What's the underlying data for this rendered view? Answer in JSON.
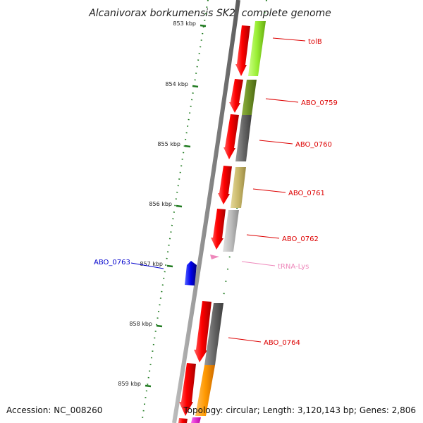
{
  "title": "Alcanivorax borkumensis SK2, complete genome",
  "footer": {
    "accession": "Accession: NC_008260",
    "topology": "Topology: circular; Length: 3,120,143 bp; Genes: 2,806"
  },
  "colors": {
    "backbone": "#8c8c8c",
    "tick": "#1f7a1f",
    "forward_strand": "#ff0000",
    "reverse_label": "#0000cc",
    "trna": "#ee88bb"
  },
  "ticks": [
    {
      "label": "853 kbp"
    },
    {
      "label": "854 kbp"
    },
    {
      "label": "855 kbp"
    },
    {
      "label": "856 kbp"
    },
    {
      "label": "857 kbp"
    },
    {
      "label": "858 kbp"
    },
    {
      "label": "859 kbp"
    }
  ],
  "genes": [
    {
      "name": "tolB",
      "color": "#99ee33"
    },
    {
      "name": "ABO_0759",
      "color": "#6b8e23"
    },
    {
      "name": "ABO_0760",
      "color": "#666666"
    },
    {
      "name": "ABO_0761",
      "color": "#c9b86a"
    },
    {
      "name": "ABO_0762",
      "color": "#bdbdbd"
    },
    {
      "name": "tRNA-Lys",
      "color": "#ee88bb"
    },
    {
      "name": "ABO_0763",
      "color": "#0000ee"
    },
    {
      "name": "ABO_0764",
      "color": "#6a6a6a"
    }
  ]
}
